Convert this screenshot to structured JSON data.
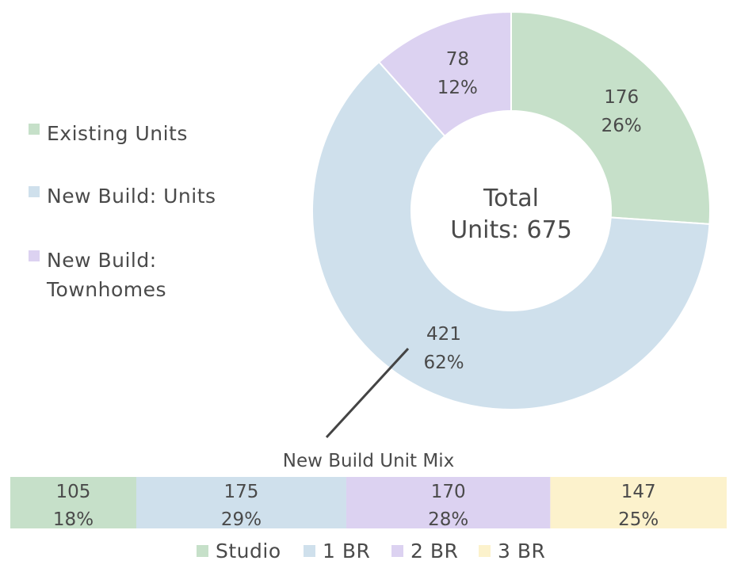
{
  "chart_data": [
    {
      "type": "pie",
      "variant": "donut",
      "center_label": [
        "Total",
        "Units: 675"
      ],
      "total": 675,
      "categories": [
        "Existing Units",
        "New Build: Units",
        "New Build: Townhomes"
      ],
      "values": [
        176,
        421,
        78
      ],
      "percent_labels": [
        "26%",
        "62%",
        "12%"
      ],
      "colors": [
        "#c6e0c9",
        "#cfe0ec",
        "#dcd2f1"
      ],
      "legend": [
        {
          "label": [
            "Existing Units"
          ],
          "color": "#c6e0c9"
        },
        {
          "label": [
            "New Build: Units"
          ],
          "color": "#cfe0ec"
        },
        {
          "label": [
            "New Build:",
            "Townhomes"
          ],
          "color": "#dcd2f1"
        }
      ],
      "legend_position": "left"
    },
    {
      "type": "bar",
      "variant": "100% stacked horizontal",
      "title": "New Build Unit Mix",
      "categories": [
        "Studio",
        "1 BR",
        "2 BR",
        "3 BR"
      ],
      "values": [
        105,
        175,
        170,
        147
      ],
      "percent_labels": [
        "18%",
        "29%",
        "28%",
        "25%"
      ],
      "colors": [
        "#c6e0c9",
        "#cfe0ec",
        "#dcd2f1",
        "#fcf2cc"
      ],
      "legend_position": "bottom"
    }
  ]
}
